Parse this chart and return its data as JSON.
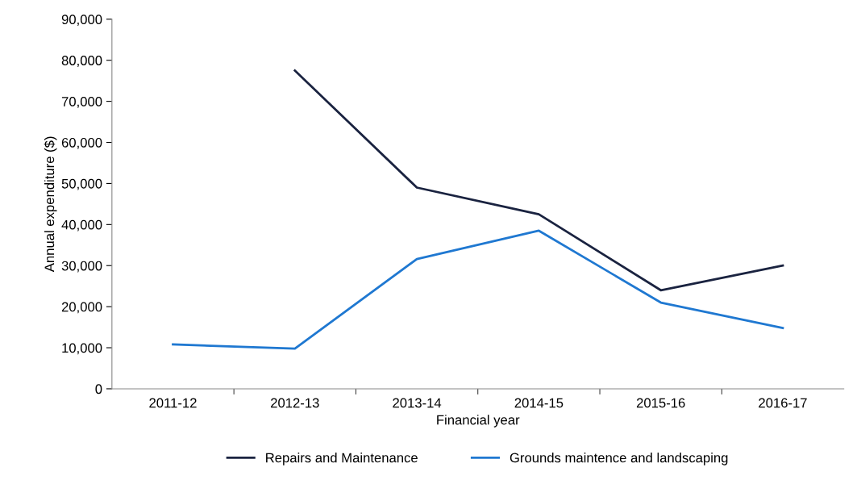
{
  "chart_data": {
    "type": "line",
    "xlabel": "Financial year",
    "ylabel": "Annual expenditure ($)",
    "categories": [
      "2011-12",
      "2012-13",
      "2013-14",
      "2014-15",
      "2015-16",
      "2016-17"
    ],
    "series": [
      {
        "name": "Repairs and Maintenance",
        "color": "#1a2340",
        "values": [
          null,
          77500,
          49000,
          42500,
          24000,
          30000
        ]
      },
      {
        "name": "Grounds maintence and landscaping",
        "color": "#1f78d1",
        "values": [
          10800,
          9800,
          31600,
          38500,
          21000,
          14800
        ]
      }
    ],
    "ylim": [
      0,
      90000
    ],
    "yticks": [
      {
        "value": 0,
        "label": "0"
      },
      {
        "value": 10000,
        "label": "10,000"
      },
      {
        "value": 20000,
        "label": "20,000"
      },
      {
        "value": 30000,
        "label": "30,000"
      },
      {
        "value": 40000,
        "label": "40,000"
      },
      {
        "value": 50000,
        "label": "50,000"
      },
      {
        "value": 60000,
        "label": "60,000"
      },
      {
        "value": 70000,
        "label": "70,000"
      },
      {
        "value": 80000,
        "label": "80,000"
      },
      {
        "value": 90000,
        "label": "90,000"
      }
    ],
    "legend": "bottom",
    "grid": false,
    "marker": "none",
    "line_style": "solid"
  }
}
